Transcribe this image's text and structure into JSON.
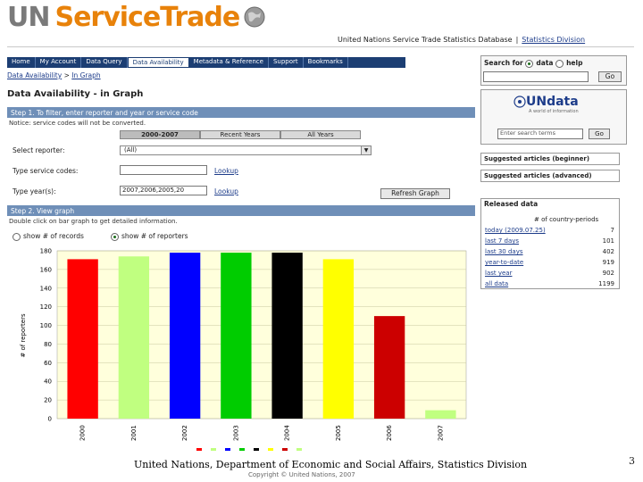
{
  "logo": {
    "un": "UN",
    "st": "ServiceTrade"
  },
  "header": {
    "db_title": "United Nations Service Trade Statistics Database",
    "separator": "|",
    "division_link": "Statistics Division"
  },
  "tabs": [
    {
      "label": "Home"
    },
    {
      "label": "My Account"
    },
    {
      "label": "Data Query"
    },
    {
      "label": "Data Availability"
    },
    {
      "label": "Metadata & Reference"
    },
    {
      "label": "Support"
    },
    {
      "label": "Bookmarks"
    }
  ],
  "breadcrumb": {
    "root": "Data Availability",
    "sep": ">",
    "current": "In Graph"
  },
  "page_title": "Data Availability - in Graph",
  "step1": {
    "title": "Step 1. To filter, enter reporter and year or service code",
    "notice": "Notice: service codes will not be converted.",
    "period_tabs": [
      "2000-2007",
      "Recent Years",
      "All Years"
    ],
    "reporter_label": "Select reporter:",
    "reporter_value": "(All)",
    "service_label": "Type service codes:",
    "service_value": "",
    "service_lookup": "Lookup",
    "year_label": "Type year(s):",
    "year_value": "2007,2006,2005,20",
    "year_lookup": "Lookup",
    "refresh": "Refresh Graph"
  },
  "step2": {
    "title": "Step 2. View graph",
    "hint": "Double click on bar graph to get detailed information.",
    "opt_records": "show # of records",
    "opt_reporters": "show # of reporters"
  },
  "chart_data": {
    "type": "bar",
    "ylabel": "# of reporters",
    "ylim": [
      0,
      180
    ],
    "yticks": [
      0,
      20,
      40,
      60,
      80,
      100,
      120,
      140,
      160,
      180
    ],
    "categories": [
      "2000",
      "2001",
      "2002",
      "2003",
      "2004",
      "2005",
      "2006",
      "2007"
    ],
    "values": [
      171,
      174,
      178,
      178,
      178,
      171,
      110,
      9
    ],
    "colors": [
      "#ff0000",
      "#c0ff80",
      "#0000ff",
      "#00cc00",
      "#000000",
      "#ffff00",
      "#cc0000",
      "#c0ff80"
    ]
  },
  "search": {
    "label_prefix": "Search for",
    "opt_data": "data",
    "opt_help": "help",
    "go": "Go"
  },
  "undata": {
    "logo": "UNdata",
    "tagline": "A world of information",
    "placeholder": "Enter search terms",
    "go": "Go"
  },
  "suggested": {
    "beginner": "Suggested articles (beginner)",
    "advanced": "Suggested articles (advanced)"
  },
  "released": {
    "title": "Released data",
    "col_header": "# of country-periods",
    "rows": [
      {
        "label": "today (2009.07.25)",
        "value": "7"
      },
      {
        "label": "last 7 days",
        "value": "101"
      },
      {
        "label": "last 30 days",
        "value": "402"
      },
      {
        "label": "year-to-date",
        "value": "919"
      },
      {
        "label": "last year",
        "value": "902"
      },
      {
        "label": "all data",
        "value": "1199"
      }
    ]
  },
  "footer": {
    "text": "United Nations, Department of Economic and Social Affairs, Statistics Division",
    "copyright": "Copyright © United Nations, 2007",
    "page": "3"
  }
}
